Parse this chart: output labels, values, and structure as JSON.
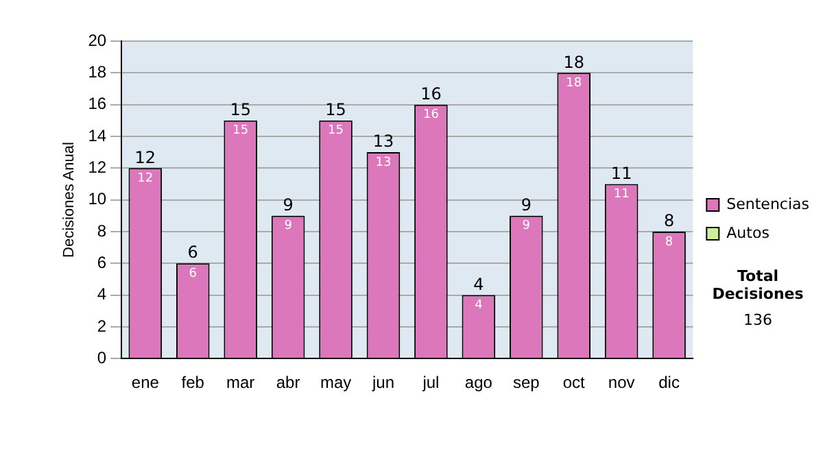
{
  "chart_data": {
    "type": "bar",
    "ylabel": "Decisiones Anual",
    "categories": [
      "ene",
      "feb",
      "mar",
      "abr",
      "may",
      "jun",
      "jul",
      "ago",
      "sep",
      "oct",
      "nov",
      "dic"
    ],
    "series": [
      {
        "name": "Sentencias",
        "color": "#dd77bb",
        "values": [
          12,
          6,
          15,
          9,
          15,
          13,
          16,
          4,
          9,
          18,
          11,
          8
        ],
        "value_labels": [
          "12",
          "6",
          "15",
          "9",
          "15",
          "13",
          "16",
          "4",
          "9",
          "18",
          "11",
          "8"
        ]
      },
      {
        "name": "Autos",
        "color": "#ccee99",
        "values": [
          0,
          0,
          0,
          0,
          0,
          0,
          0,
          0,
          0,
          0,
          0,
          0
        ],
        "value_labels": [
          null,
          null,
          null,
          null,
          null,
          null,
          null,
          null,
          null,
          null,
          null,
          null
        ]
      }
    ],
    "stacked": true,
    "ylim": [
      0,
      20
    ],
    "yticks": [
      0,
      2,
      4,
      6,
      8,
      10,
      12,
      14,
      16,
      18,
      20
    ],
    "grid": "y",
    "legend": "right",
    "totals": [
      "12",
      "6",
      "15",
      "9",
      "15",
      "13",
      "16",
      "4",
      "9",
      "18",
      "11",
      "8"
    ],
    "annotations": [
      "Total Decisiones",
      "136"
    ]
  }
}
